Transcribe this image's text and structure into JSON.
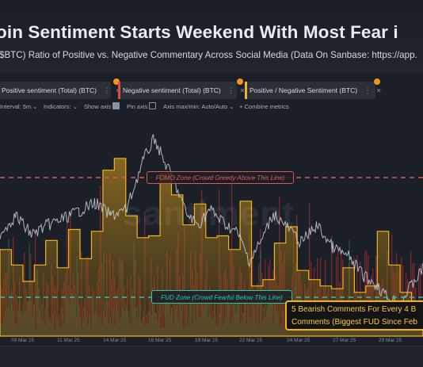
{
  "header": {
    "title": "oin Sentiment Starts Weekend With Most Fear i",
    "subtitle": "$BTC) Ratio of Positive vs. Negative Commentary Across Social Media (Data On Sanbase: https://app."
  },
  "legend": {
    "items": [
      {
        "label": "Positive sentiment (Total) (BTC)",
        "color": "#3cc47c"
      },
      {
        "label": "Negative sentiment (Total) (BTC)",
        "color": "#e24a4a"
      },
      {
        "label": "Positive / Negative Sentiment (BTC)",
        "color": "#f2b41c"
      }
    ],
    "menu_glyph": "⋮",
    "close_glyph": "✕"
  },
  "toolbar": {
    "interval": "Interval: 5m",
    "indicators": "Indicators:",
    "show_axis": "Show axis",
    "pin_axis": "Pin axis",
    "axis_minmax": "Axis max/min: Auto/Auto",
    "combine": "Combine metrics",
    "chevron": "⌄",
    "plus": "+"
  },
  "zones": {
    "fomo_label": "FOMO Zone (Crowd Greedy Above This Line)",
    "fud_label": "FUD Zone (Crowd Fearful Below This Line)",
    "fomo_color": "#e25555",
    "fud_color": "#26c6a8"
  },
  "annotation": {
    "line1": "5 Bearish Comments For Every 4 B",
    "line2": "Comments (Biggest FUD Since Feb"
  },
  "watermark": "santiment",
  "chart_data": {
    "type": "area",
    "x_ticks": [
      "09 Mar 25",
      "11 Mar 25",
      "14 Mar 25",
      "16 Mar 25",
      "19 Mar 25",
      "22 Mar 25",
      "24 Mar 25",
      "27 Mar 25",
      "29 Mar 25"
    ],
    "series": [
      {
        "name": "Positive / Negative Sentiment (BTC)",
        "type": "step",
        "values": [
          0.95,
          0.78,
          0.6,
          0.78,
          1.05,
          0.75,
          1.17,
          0.85,
          1.15,
          1.82,
          1.95,
          1.32,
          1.08,
          1.1,
          1.78,
          1.55,
          1.22,
          1.45,
          1.08,
          1.1,
          0.95,
          1.48,
          0.55,
          0.62,
          1.02,
          1.2,
          0.72,
          0.62,
          0.55,
          0.52,
          0.75,
          0.48,
          0.55,
          1.15,
          0.78,
          0.48,
          0.35
        ]
      }
    ]
  }
}
